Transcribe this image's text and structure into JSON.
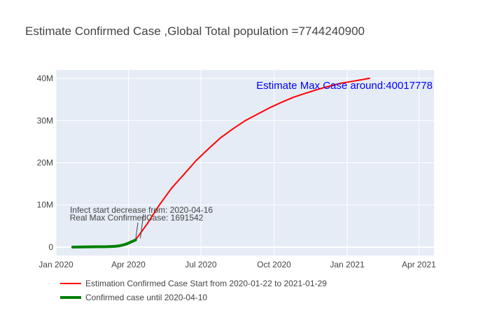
{
  "chart_data": {
    "type": "line",
    "title": "Estimate Confirmed Case ,Global Total population =7744240900",
    "xlabel": "",
    "ylabel": "",
    "xlim": [
      "2020-01-01",
      "2021-04-20"
    ],
    "ylim": [
      -2000000,
      42000000
    ],
    "grid": true,
    "x_ticks": [
      "2020-01-01",
      "2020-04-01",
      "2020-07-01",
      "2020-10-01",
      "2021-01-01",
      "2021-04-01"
    ],
    "x_tick_labels": [
      "Jan 2020",
      "Apr 2020",
      "Jul 2020",
      "Oct 2020",
      "Jan 2021",
      "Apr 2021"
    ],
    "y_ticks": [
      0,
      10000000,
      20000000,
      30000000,
      40000000
    ],
    "y_tick_labels": [
      "0",
      "10M",
      "20M",
      "30M",
      "40M"
    ],
    "series": [
      {
        "name": "Estimation Confirmed Case Start from 2020-01-22 to 2021-01-29",
        "color": "#ff0000",
        "x": [
          "2020-04-10",
          "2020-04-25",
          "2020-05-10",
          "2020-05-25",
          "2020-06-10",
          "2020-06-25",
          "2020-07-10",
          "2020-07-25",
          "2020-08-10",
          "2020-08-25",
          "2020-09-10",
          "2020-09-25",
          "2020-10-10",
          "2020-10-25",
          "2020-11-10",
          "2020-11-25",
          "2020-12-10",
          "2020-12-25",
          "2021-01-10",
          "2021-01-29"
        ],
        "y": [
          1700000,
          5600000,
          10000000,
          13900000,
          17300000,
          20500000,
          23200000,
          25800000,
          28000000,
          29900000,
          31500000,
          33000000,
          34300000,
          35500000,
          36500000,
          37400000,
          38200000,
          38900000,
          39400000,
          40017778
        ]
      },
      {
        "name": "Confirmed case until 2020-04-10",
        "color": "#008000",
        "x": [
          "2020-01-22",
          "2020-02-05",
          "2020-02-20",
          "2020-03-05",
          "2020-03-15",
          "2020-03-20",
          "2020-03-25",
          "2020-03-30",
          "2020-04-05",
          "2020-04-10"
        ],
        "y": [
          555,
          28000,
          76000,
          98000,
          167000,
          275000,
          470000,
          780000,
          1270000,
          1691542
        ]
      }
    ],
    "annotations": [
      {
        "text": "Estimate Max Case around:40017778",
        "color": "#0000ff"
      },
      {
        "text": "Infect start decrease from: 2020-04-16",
        "x": "2020-04-16",
        "y": 2100000
      },
      {
        "text": "Real Max ConfirmedCase: 1691542",
        "x": "2020-04-10",
        "y": 1691542
      }
    ],
    "legend_position": "bottom-left"
  }
}
